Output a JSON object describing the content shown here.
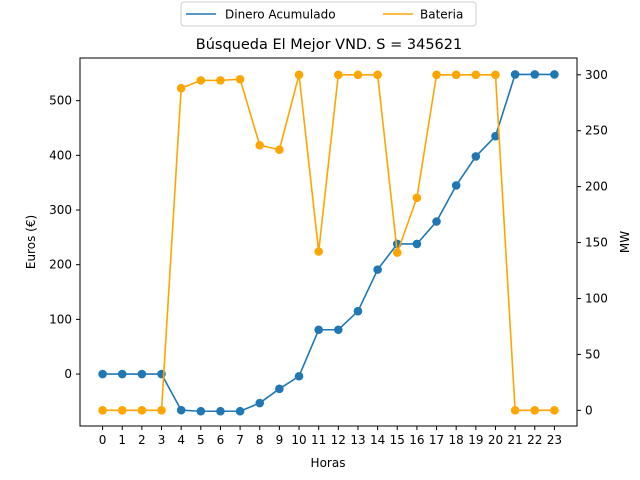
{
  "chart_data": {
    "type": "line",
    "title": "Búsqueda El Mejor VND. S = 345621",
    "xlabel": "Horas",
    "ylabel_left": "Euros (€)",
    "ylabel_right": "MW",
    "x": [
      0,
      1,
      2,
      3,
      4,
      5,
      6,
      7,
      8,
      9,
      10,
      11,
      12,
      13,
      14,
      15,
      16,
      17,
      18,
      19,
      20,
      21,
      22,
      23
    ],
    "xlim": [
      -1.15,
      24.15
    ],
    "ylim_left": [
      -95,
      578
    ],
    "yticks_left": [
      0,
      100,
      200,
      300,
      400,
      500
    ],
    "ylim_right": [
      -14,
      315
    ],
    "yticks_right": [
      0,
      50,
      100,
      150,
      200,
      250,
      300
    ],
    "grid": false,
    "legend_placement": "top-center",
    "series": [
      {
        "name": "Dinero Acumulado",
        "axis": "left",
        "color": "#1f77b4",
        "values": [
          0,
          0,
          0,
          0,
          -66,
          -68,
          -68,
          -68,
          -53,
          -27,
          -4,
          81,
          81,
          115,
          191,
          238,
          238,
          279,
          345,
          398,
          435,
          548,
          548,
          548
        ]
      },
      {
        "name": "Bateria",
        "axis": "right",
        "color": "#ffa500",
        "values": [
          0,
          0,
          0,
          0,
          288,
          295,
          295,
          296,
          237,
          233,
          300,
          142,
          300,
          300,
          300,
          141,
          190,
          300,
          300,
          300,
          300,
          0,
          0,
          0
        ]
      }
    ]
  }
}
